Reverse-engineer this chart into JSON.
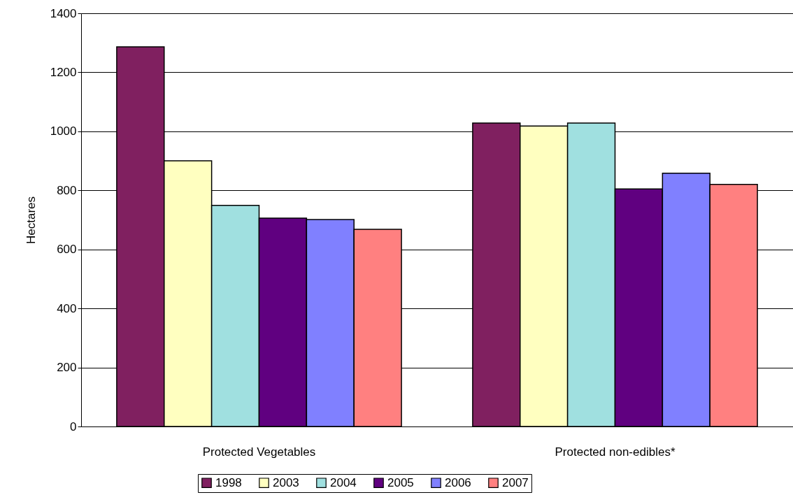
{
  "chart_data": {
    "type": "bar",
    "ylabel": "Hectares",
    "categories": [
      "Protected Vegetables",
      "Protected non-edibles*"
    ],
    "series": [
      {
        "name": "1998",
        "color": "#802060",
        "values": [
          1286,
          1028
        ]
      },
      {
        "name": "2003",
        "color": "#ffffc0",
        "values": [
          900,
          1018
        ]
      },
      {
        "name": "2004",
        "color": "#a0e0e0",
        "values": [
          749,
          1028
        ]
      },
      {
        "name": "2005",
        "color": "#600080",
        "values": [
          706,
          805
        ]
      },
      {
        "name": "2006",
        "color": "#8080ff",
        "values": [
          701,
          858
        ]
      },
      {
        "name": "2007",
        "color": "#ff8080",
        "values": [
          668,
          820
        ]
      }
    ],
    "ylim": [
      0,
      1400
    ],
    "yticks": [
      0,
      200,
      400,
      600,
      800,
      1000,
      1200,
      1400
    ],
    "grid": "y",
    "legend": "bottom"
  }
}
